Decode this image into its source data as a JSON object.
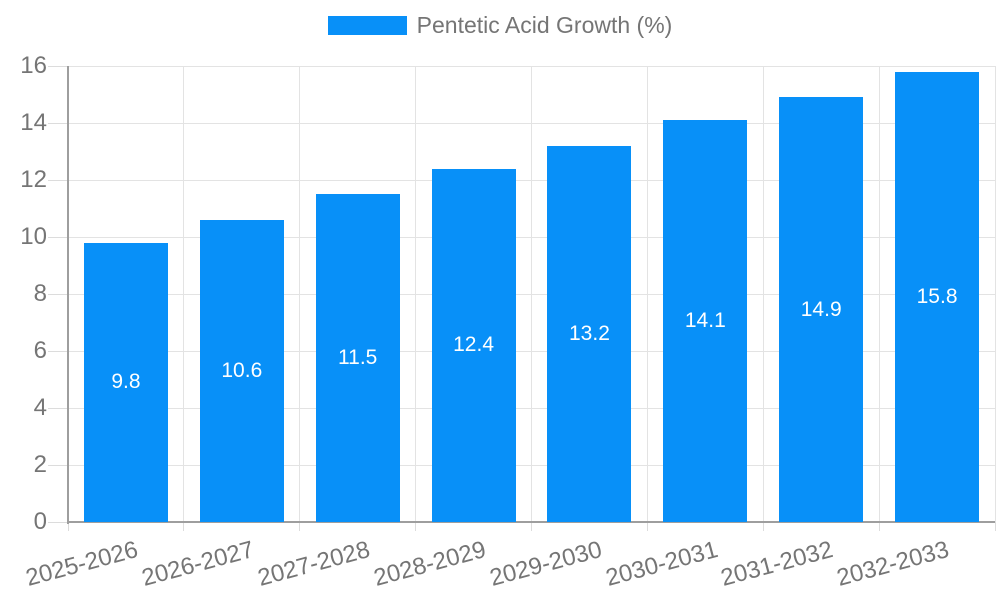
{
  "legend": {
    "label": "Pentetic Acid Growth (%)"
  },
  "colors": {
    "bar": "#0890f8",
    "bar_label_text": "#ffffff",
    "axis_line": "#9e9e9e",
    "gridline": "#e3e3e3",
    "tick": "#dcdcdc",
    "axis_text": "#757575",
    "background": "#ffffff"
  },
  "chart_data": {
    "type": "bar",
    "title": "",
    "xlabel": "",
    "ylabel": "",
    "legend_position": "top-center",
    "grid": true,
    "bar_labels_visible": true,
    "x_label_rotation_deg": -15,
    "series_name": "Pentetic Acid Growth (%)",
    "categories": [
      "2025-2026",
      "2026-2027",
      "2027-2028",
      "2028-2029",
      "2029-2030",
      "2030-2031",
      "2031-2032",
      "2032-2033"
    ],
    "values": [
      9.8,
      10.6,
      11.5,
      12.4,
      13.2,
      14.1,
      14.9,
      15.8
    ],
    "ylim": [
      0,
      16
    ],
    "ytick_step": 2
  }
}
